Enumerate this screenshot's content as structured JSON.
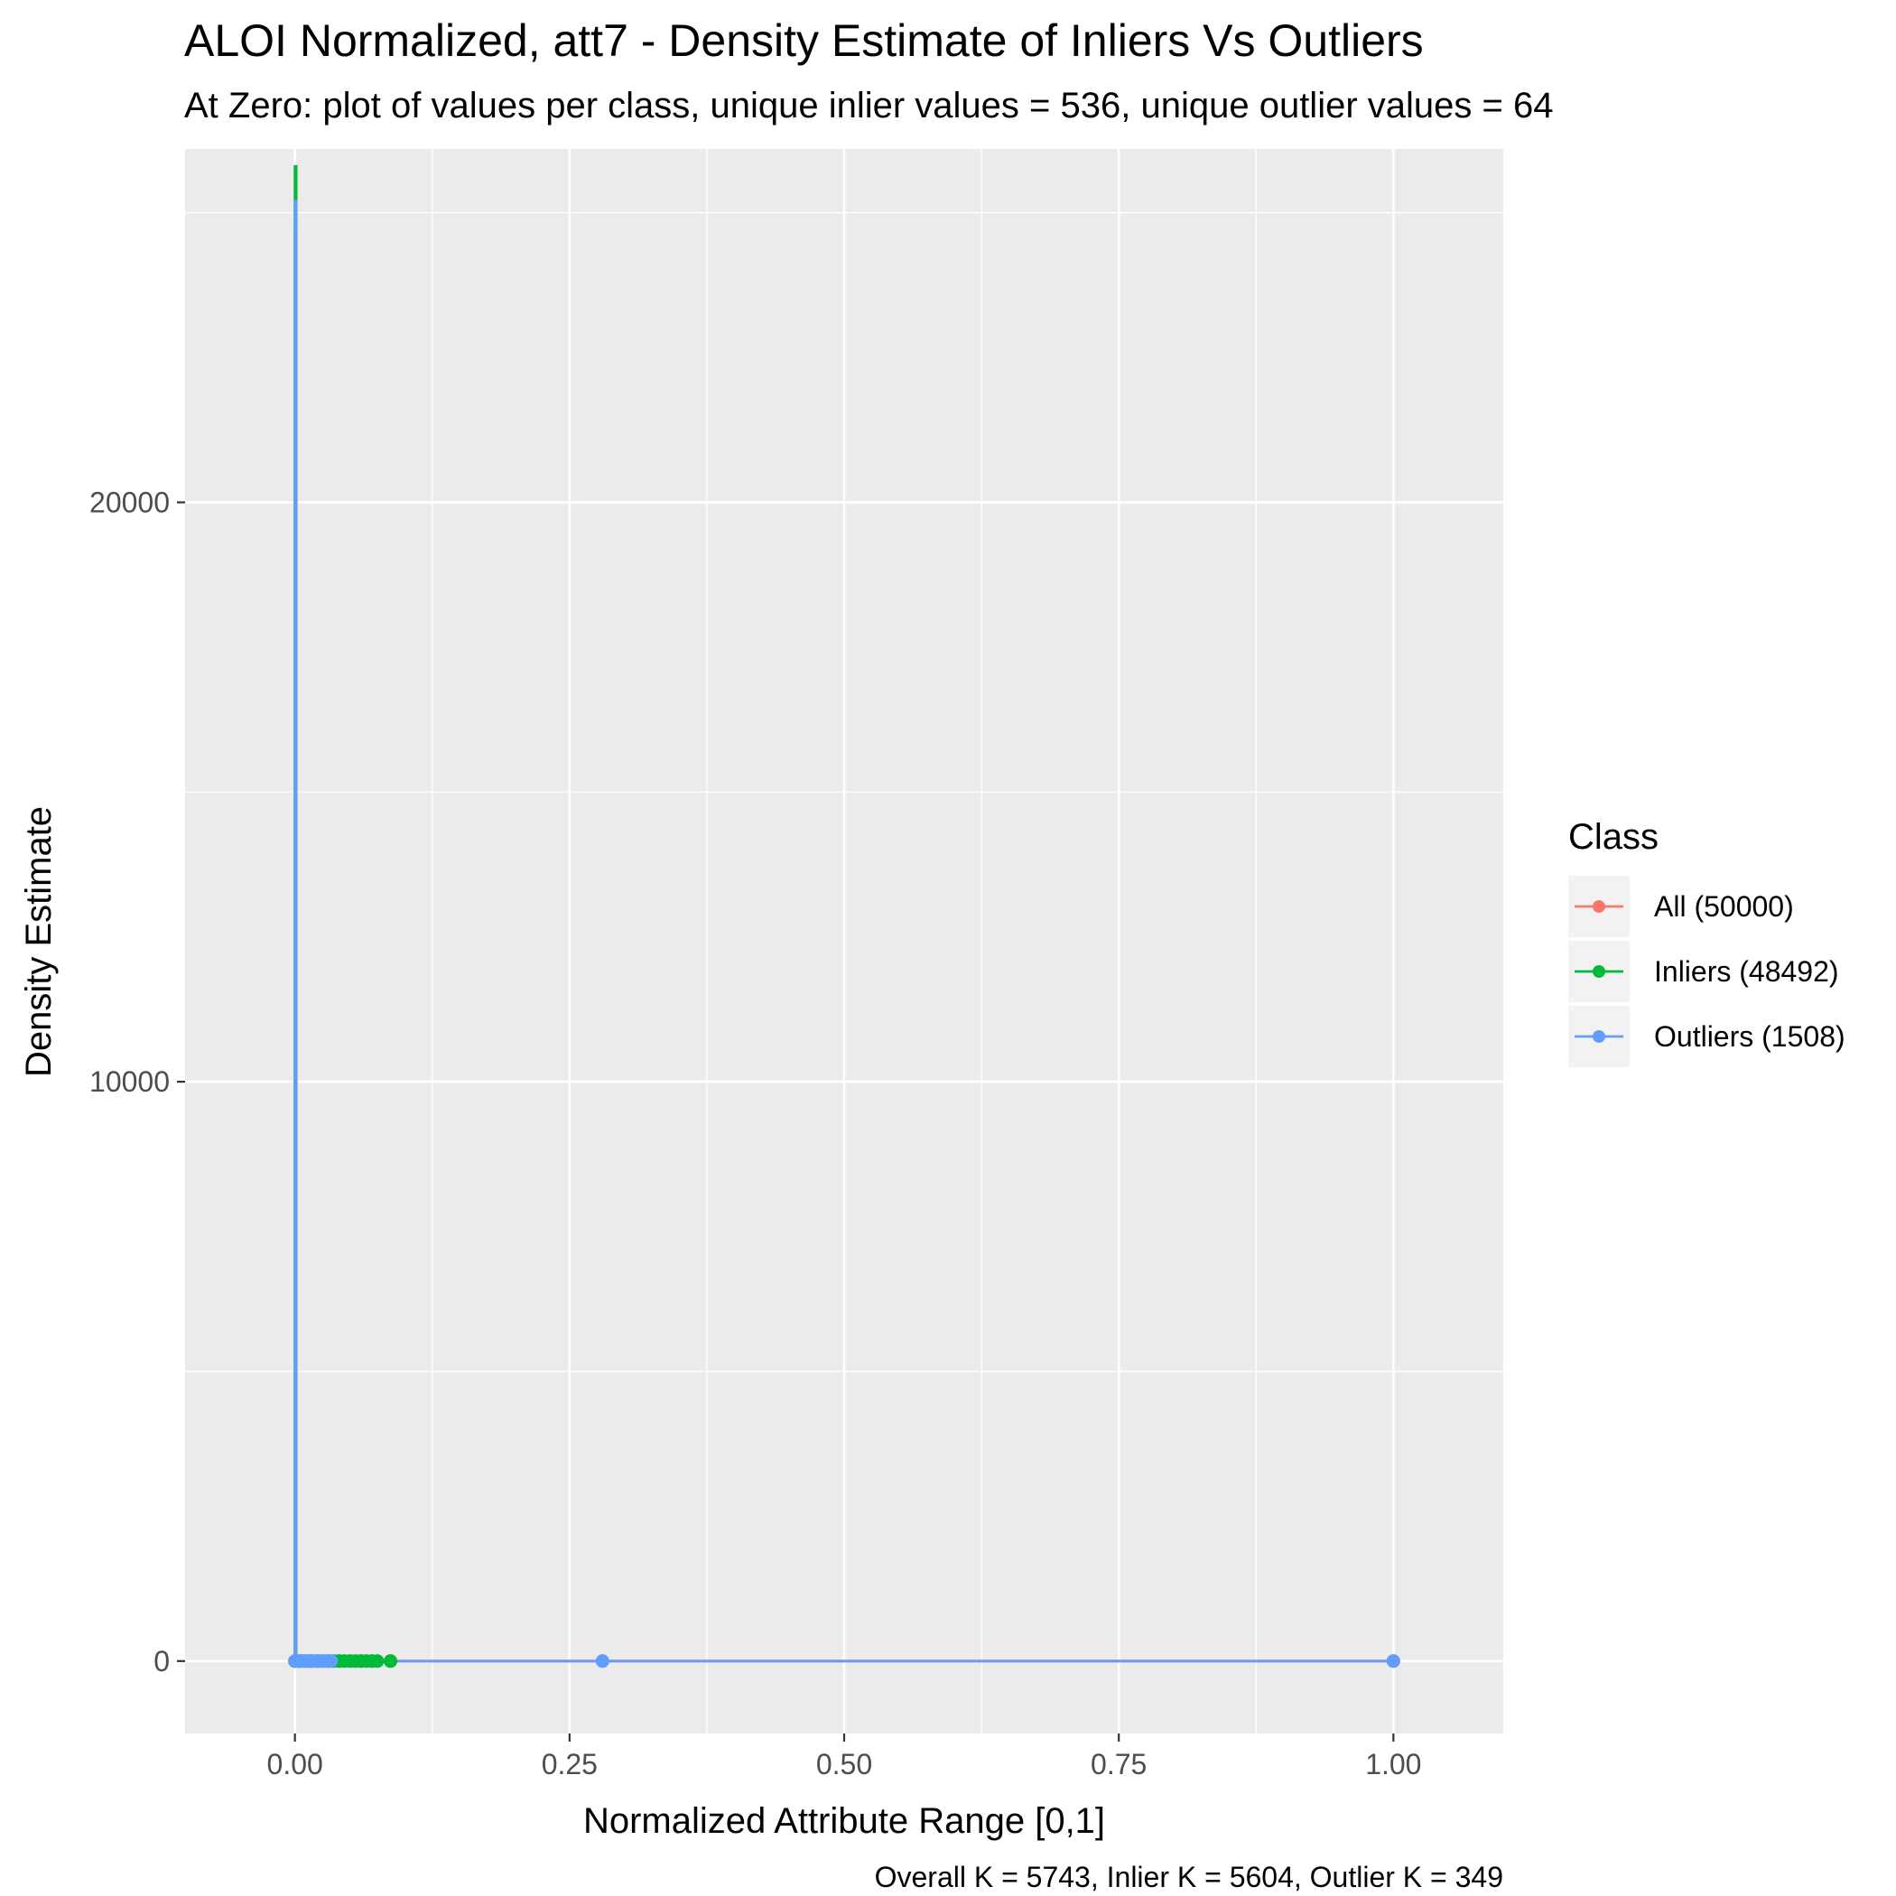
{
  "chart_data": {
    "type": "line",
    "title": "ALOI Normalized, att7 - Density Estimate of Inliers Vs Outliers",
    "subtitle": "At Zero: plot of values per class, unique inlier values = 536, unique outlier values = 64",
    "xlabel": "Normalized Attribute Range [0,1]",
    "ylabel": "Density Estimate",
    "caption": "Overall K = 5743, Inlier K = 5604, Outlier K = 349",
    "xlim": [
      -0.1,
      1.1
    ],
    "ylim": [
      -1250,
      26100
    ],
    "x_ticks": [
      0,
      0.25,
      0.5,
      0.75,
      1
    ],
    "x_tick_labels": [
      "0.00",
      "0.25",
      "0.50",
      "0.75",
      "1.00"
    ],
    "y_ticks": [
      0,
      10000,
      20000
    ],
    "y_tick_labels": [
      "0",
      "10000",
      "20000"
    ],
    "grid": true,
    "legend": {
      "title": "Class",
      "position": "right",
      "entries": [
        "All (50000)",
        "Inliers (48492)",
        "Outliers (1508)"
      ]
    },
    "series": [
      {
        "name": "All (50000)",
        "color": "#F8766D",
        "line": [
          [
            0,
            0
          ],
          [
            0,
            24700
          ],
          [
            0.0012,
            24700
          ],
          [
            0.0012,
            0
          ],
          [
            1,
            0
          ]
        ],
        "points": [
          0,
          0.005,
          0.01,
          0.02,
          0.03,
          0.04,
          0.05,
          0.06,
          0.07,
          0.087,
          0.28,
          1.0
        ]
      },
      {
        "name": "Inliers (48492)",
        "color": "#00BA38",
        "line": [
          [
            0,
            0
          ],
          [
            0,
            25800
          ],
          [
            0.0012,
            25800
          ],
          [
            0.0012,
            0
          ],
          [
            0.09,
            0
          ]
        ],
        "points": [
          0,
          0.005,
          0.01,
          0.015,
          0.02,
          0.025,
          0.03,
          0.035,
          0.04,
          0.045,
          0.05,
          0.055,
          0.06,
          0.065,
          0.07,
          0.075,
          0.087
        ]
      },
      {
        "name": "Outliers (1508)",
        "color": "#619CFF",
        "line": [
          [
            0,
            0
          ],
          [
            0,
            25200
          ],
          [
            0.0012,
            25200
          ],
          [
            0.0012,
            0
          ],
          [
            1,
            0
          ]
        ],
        "points": [
          0,
          0.003,
          0.006,
          0.009,
          0.012,
          0.015,
          0.018,
          0.021,
          0.024,
          0.027,
          0.03,
          0.033,
          0.28,
          1.0
        ]
      }
    ]
  }
}
